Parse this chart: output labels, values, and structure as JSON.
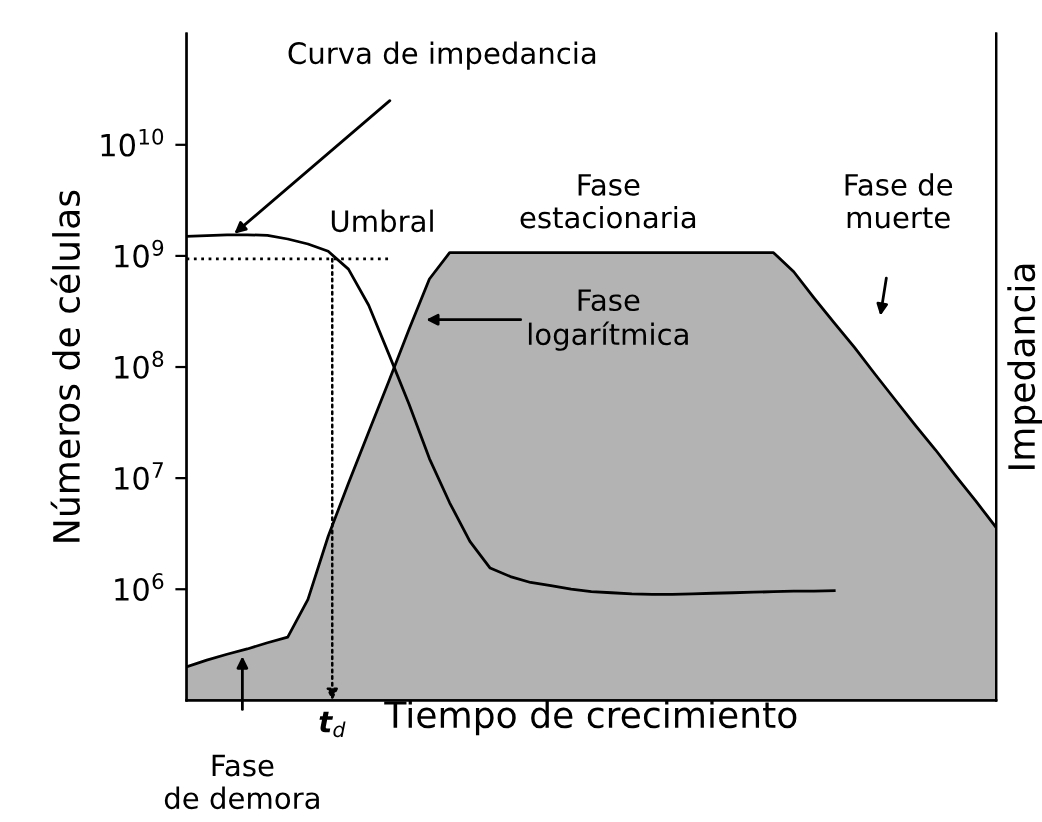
{
  "chart_data": {
    "type": "area",
    "xlabel": "Tiempo de crecimiento",
    "ylabel": "Números de células",
    "y2label": "Impedancia",
    "categories": [
      null,
      null,
      null,
      null,
      null,
      null,
      null,
      null,
      null,
      null,
      null,
      null,
      null,
      null,
      null,
      null,
      null,
      null,
      null,
      null,
      null,
      null,
      null,
      null,
      null,
      null,
      null,
      null,
      null,
      null,
      null,
      null,
      null,
      null,
      null,
      null,
      null,
      null,
      null,
      null,
      null
    ],
    "ylim": [
      100000.0,
      100000000000.0
    ],
    "yticks": [
      {
        "value": 1000000.0,
        "label": "10$^{6}$"
      },
      {
        "value": 10000000.0,
        "label": "10$^{7}$"
      },
      {
        "value": 100000000.0,
        "label": "10$^{8}$"
      },
      {
        "value": 1000000000.0,
        "label": "10$^{9}$"
      },
      {
        "value": 10000000000.0,
        "label": "10$^{10}$"
      }
    ],
    "log": "y",
    "grid": false,
    "series": [
      {
        "color": "#b3b3b3",
        "values": [
          200000.0,
          230000.0,
          260000.0,
          290000.0,
          330000.0,
          370000.0,
          810000.0,
          3000000.0,
          9000000.0,
          26000000.0,
          75000000.0,
          220000000.0,
          620000000.0,
          1070000000.0,
          1070000000.0,
          1070000000.0,
          1070000000.0,
          1070000000.0,
          1070000000.0,
          1070000000.0,
          1070000000.0,
          1070000000.0,
          1070000000.0,
          1070000000.0,
          1070000000.0,
          1070000000.0,
          1070000000.0,
          1070000000.0,
          1070000000.0,
          1070000000.0,
          720000000.0,
          420000000.0,
          250000000.0,
          150000000.0,
          87000000.0,
          51000000.0,
          30000000.0,
          18000000.0,
          10500000.0,
          6200000.0,
          3600000.0
        ]
      },
      {
        "type": "line",
        "color": "#000000",
        "line_style": "solid",
        "values": [
          1500000000.0,
          1520000000.0,
          1550000000.0,
          1550000000.0,
          1530000000.0,
          1420000000.0,
          1280000000.0,
          1100000000.0,
          760000000.0,
          360000000.0,
          130000000.0,
          46000000.0,
          15000000.0,
          6000000.0,
          2700000.0,
          1550000.0,
          1300000.0,
          1150000.0,
          1080000.0,
          1000000.0,
          950000.0,
          930000.0,
          910000.0,
          900000.0,
          900000.0,
          910000.0,
          920000.0,
          930000.0,
          940000.0,
          950000.0,
          960000.0,
          960000.0,
          970000.0,
          null,
          null,
          null,
          null,
          null,
          null,
          null,
          null
        ]
      },
      {
        "type": "line",
        "color": "#000000",
        "line_style": "dotted",
        "values": [
          940000000.0,
          940000000.0,
          940000000.0,
          940000000.0,
          940000000.0,
          940000000.0,
          940000000.0,
          940000000.0,
          940000000.0,
          940000000.0,
          940000000.0,
          null,
          null,
          null,
          null,
          null,
          null,
          null,
          null,
          null,
          null,
          null,
          null,
          null,
          null,
          null,
          null,
          null,
          null,
          null,
          null,
          null,
          null,
          null,
          null,
          null,
          null,
          null,
          null,
          null,
          null
        ]
      }
    ],
    "annotations": [
      "Curva de impedancia",
      "Umbral",
      "Fase\nestacionaria",
      "Fase de\nmuerte",
      "Fase\nlogarítmica",
      "Fase\nde demora",
      "t$_{d}$"
    ]
  }
}
